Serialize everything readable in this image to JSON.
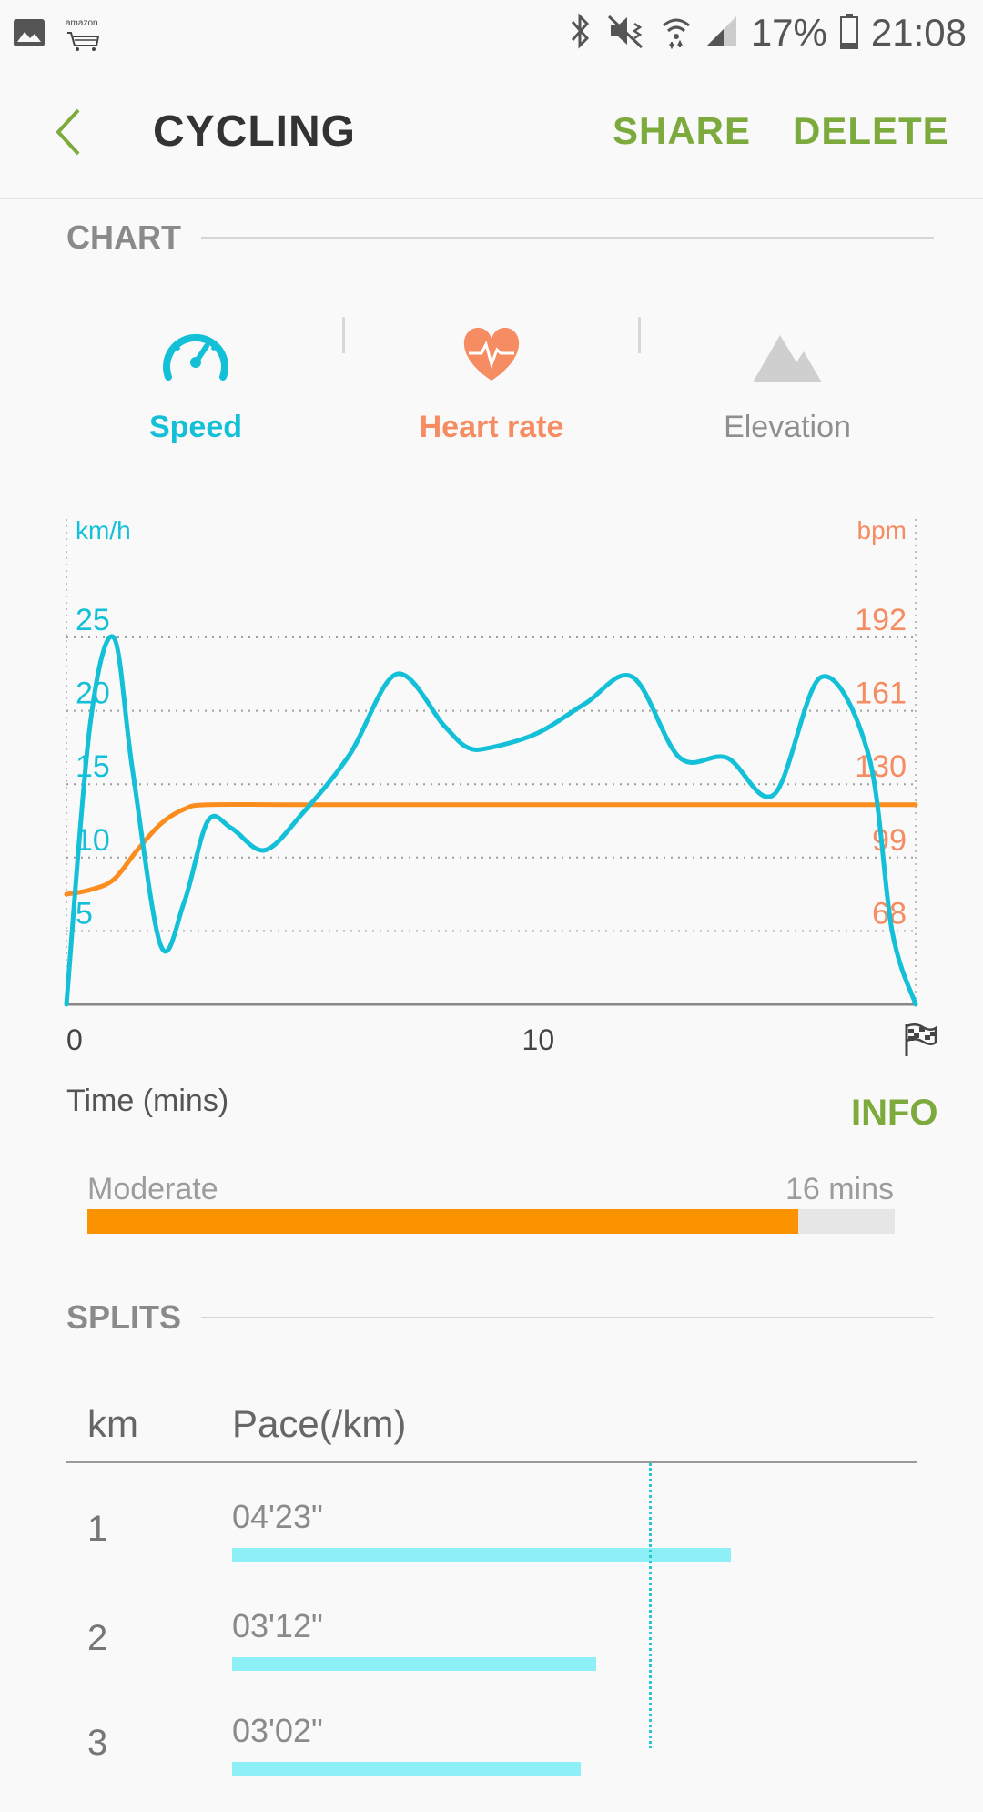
{
  "status_bar": {
    "battery": "17%",
    "time": "21:08",
    "icons": [
      "image-icon",
      "amazon-icon",
      "bluetooth-icon",
      "mute-icon",
      "wifi-icon",
      "signal-icon",
      "battery-icon"
    ],
    "amazon_text": "amazon"
  },
  "app_bar": {
    "title": "CYCLING",
    "share": "SHARE",
    "delete": "DELETE"
  },
  "chart_section": {
    "header": "CHART",
    "tabs": [
      {
        "label": "Speed",
        "icon": "speedometer-icon"
      },
      {
        "label": "Heart rate",
        "icon": "heart-rate-icon"
      },
      {
        "label": "Elevation",
        "icon": "mountain-icon"
      }
    ],
    "time_label": "Time (mins)",
    "info": "INFO"
  },
  "chart_data": {
    "type": "line",
    "x_ticks": [
      "0",
      "10"
    ],
    "x_end_icon": "finish-flag-icon",
    "xlim": [
      0,
      18
    ],
    "left_axis": {
      "unit": "km/h",
      "ticks": [
        "25",
        "20",
        "15",
        "10",
        "5"
      ],
      "ylim": [
        0,
        25
      ]
    },
    "right_axis": {
      "unit": "bpm",
      "ticks": [
        "192",
        "161",
        "130",
        "99",
        "68"
      ]
    },
    "grid": true,
    "series": [
      {
        "axis": "left",
        "color": "#13c0d7",
        "x": [
          0,
          0.5,
          1,
          1.4,
          2,
          2.5,
          3,
          3.5,
          4.2,
          5,
          6,
          7,
          8,
          8.5,
          9,
          10,
          11,
          12,
          13,
          14,
          15,
          16,
          17,
          17.5,
          18
        ],
        "y": [
          0,
          19,
          25,
          16,
          4,
          7,
          12.5,
          12,
          10.5,
          13,
          17,
          22.5,
          19,
          17.5,
          17.5,
          18.5,
          20.5,
          22.3,
          16.8,
          16.8,
          14.3,
          22.3,
          17,
          5,
          0
        ]
      },
      {
        "axis": "left",
        "color": "#fb8c1e",
        "x": [
          0,
          0.5,
          1,
          1.5,
          2,
          2.5,
          3,
          5,
          10,
          15,
          18
        ],
        "y": [
          7.5,
          7.8,
          8.5,
          10.5,
          12.3,
          13.3,
          13.6,
          13.6,
          13.6,
          13.6,
          13.6
        ]
      }
    ]
  },
  "moderate": {
    "label": "Moderate",
    "time": "16 mins",
    "fraction": 0.88,
    "color": "#fb9300"
  },
  "splits_section": {
    "header": "SPLITS",
    "col_km": "km",
    "col_pace": "Pace(/km)",
    "rows": [
      {
        "km": "1",
        "pace": "04'23\"",
        "fraction": 0.63
      },
      {
        "km": "2",
        "pace": "03'12\"",
        "fraction": 0.46
      },
      {
        "km": "3",
        "pace": "03'02\"",
        "fraction": 0.44
      }
    ]
  }
}
